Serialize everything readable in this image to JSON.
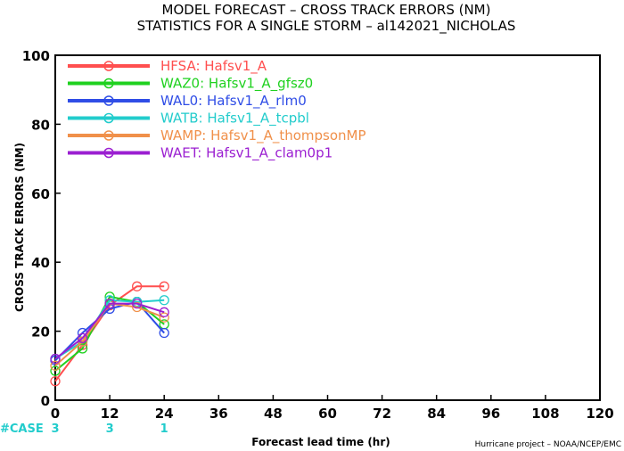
{
  "chart_data": {
    "type": "line",
    "title": "MODEL FORECAST – CROSS TRACK ERRORS (NM)",
    "subtitle": "STATISTICS FOR A SINGLE STORM – al142021_NICHOLAS",
    "xlabel": "Forecast lead time (hr)",
    "ylabel": "CROSS TRACK ERRORS (NM)",
    "xlim": [
      0,
      120
    ],
    "ylim": [
      0,
      100
    ],
    "x_ticks": [
      "0",
      "12",
      "24",
      "36",
      "48",
      "60",
      "72",
      "84",
      "96",
      "108",
      "120"
    ],
    "y_ticks": [
      "0",
      "20",
      "40",
      "60",
      "80",
      "100"
    ],
    "grid": false,
    "legend_position": "top-left",
    "case_label": "#CASE",
    "case_counts": [
      {
        "x": 0,
        "label": "3"
      },
      {
        "x": 12,
        "label": "3"
      },
      {
        "x": 24,
        "label": "1"
      }
    ],
    "credit": "Hurricane project – NOAA/NCEP/EMC",
    "series": [
      {
        "name": "HFSA: Hafsv1_A",
        "color": "#ff4f4f",
        "x": [
          0,
          6,
          12,
          18,
          24
        ],
        "y": [
          5.5,
          16,
          27.5,
          33,
          33
        ]
      },
      {
        "name": "WAZ0: Hafsv1_A_gfsz0",
        "color": "#1fd11f",
        "x": [
          0,
          6,
          12,
          18,
          24
        ],
        "y": [
          8.5,
          15,
          30,
          28.5,
          22
        ]
      },
      {
        "name": "WAL0: Hafsv1_A_rlm0",
        "color": "#2f4de6",
        "x": [
          0,
          6,
          12,
          18,
          24
        ],
        "y": [
          11.5,
          19.5,
          26.5,
          28.5,
          19.5
        ]
      },
      {
        "name": "WATB: Hafsv1_A_tcpbl",
        "color": "#22cccc",
        "x": [
          0,
          6,
          12,
          18,
          24
        ],
        "y": [
          12,
          17,
          29,
          28.5,
          29
        ]
      },
      {
        "name": "WAMP: Hafsv1_A_thompsonMP",
        "color": "#f0904a",
        "x": [
          0,
          6,
          12,
          18,
          24
        ],
        "y": [
          10,
          17,
          28,
          27,
          24
        ]
      },
      {
        "name": "WAET: Hafsv1_A_clam0p1",
        "color": "#9b1fd1",
        "x": [
          0,
          6,
          12,
          18,
          24
        ],
        "y": [
          12,
          18,
          28,
          28,
          25.5
        ]
      }
    ]
  }
}
